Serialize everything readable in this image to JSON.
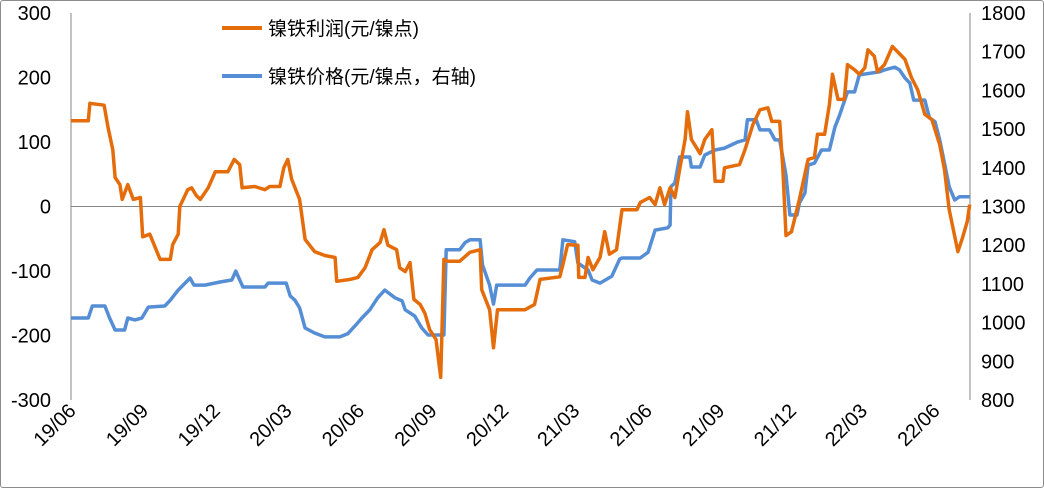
{
  "chart_data": {
    "type": "line",
    "title": "",
    "xlabel": "",
    "ylabel": "",
    "y2label": "",
    "xlim": [
      "2019-06-01",
      "2022-07-15"
    ],
    "x_ticks": [
      "19/06",
      "19/09",
      "19/12",
      "20/03",
      "20/06",
      "20/09",
      "20/12",
      "21/03",
      "21/06",
      "21/09",
      "21/12",
      "22/03",
      "22/06"
    ],
    "x_tick_dates": [
      "2019-06-01",
      "2019-09-01",
      "2019-12-01",
      "2020-03-01",
      "2020-06-01",
      "2020-09-01",
      "2020-12-01",
      "2021-03-01",
      "2021-06-01",
      "2021-09-01",
      "2021-12-01",
      "2022-03-01",
      "2022-06-01"
    ],
    "ylim": [
      -300,
      300
    ],
    "y_ticks": [
      "-300",
      "-200",
      "-100",
      "0",
      "100",
      "200",
      "300"
    ],
    "y2lim": [
      800,
      1800
    ],
    "y2_ticks": [
      "800",
      "900",
      "1000",
      "1100",
      "1200",
      "1300",
      "1400",
      "1500",
      "1600",
      "1700",
      "1800"
    ],
    "grid": false,
    "legend_position": "top-center",
    "series": [
      {
        "name": "镍铁利润(元/镍点)",
        "axis": "left",
        "color": "#E46C0A",
        "points": [
          [
            "2019-06-01",
            133
          ],
          [
            "2019-06-23",
            133
          ],
          [
            "2019-06-25",
            160
          ],
          [
            "2019-07-13",
            157
          ],
          [
            "2019-07-18",
            122
          ],
          [
            "2019-07-24",
            88
          ],
          [
            "2019-07-27",
            45
          ],
          [
            "2019-08-02",
            34
          ],
          [
            "2019-08-05",
            11
          ],
          [
            "2019-08-12",
            34
          ],
          [
            "2019-08-19",
            11
          ],
          [
            "2019-08-28",
            14
          ],
          [
            "2019-08-31",
            -47
          ],
          [
            "2019-09-09",
            -43
          ],
          [
            "2019-09-22",
            -82
          ],
          [
            "2019-10-05",
            -82
          ],
          [
            "2019-10-08",
            -59
          ],
          [
            "2019-10-15",
            -43
          ],
          [
            "2019-10-17",
            0
          ],
          [
            "2019-10-27",
            26
          ],
          [
            "2019-11-01",
            29
          ],
          [
            "2019-11-07",
            17
          ],
          [
            "2019-11-12",
            11
          ],
          [
            "2019-11-22",
            29
          ],
          [
            "2019-12-01",
            54
          ],
          [
            "2019-12-17",
            54
          ],
          [
            "2019-12-25",
            73
          ],
          [
            "2020-01-01",
            65
          ],
          [
            "2020-01-04",
            29
          ],
          [
            "2020-01-20",
            31
          ],
          [
            "2020-02-02",
            26
          ],
          [
            "2020-02-08",
            31
          ],
          [
            "2020-02-21",
            31
          ],
          [
            "2020-02-26",
            60
          ],
          [
            "2020-03-02",
            73
          ],
          [
            "2020-03-07",
            42
          ],
          [
            "2020-03-17",
            11
          ],
          [
            "2020-03-24",
            -51
          ],
          [
            "2020-04-05",
            -70
          ],
          [
            "2020-04-18",
            -76
          ],
          [
            "2020-05-01",
            -79
          ],
          [
            "2020-05-03",
            -116
          ],
          [
            "2020-05-20",
            -113
          ],
          [
            "2020-05-30",
            -110
          ],
          [
            "2020-06-08",
            -95
          ],
          [
            "2020-06-17",
            -67
          ],
          [
            "2020-06-27",
            -56
          ],
          [
            "2020-07-02",
            -36
          ],
          [
            "2020-07-07",
            -60
          ],
          [
            "2020-07-18",
            -67
          ],
          [
            "2020-07-22",
            -95
          ],
          [
            "2020-07-29",
            -101
          ],
          [
            "2020-08-04",
            -87
          ],
          [
            "2020-08-09",
            -144
          ],
          [
            "2020-08-17",
            -152
          ],
          [
            "2020-08-23",
            -166
          ],
          [
            "2020-08-29",
            -191
          ],
          [
            "2020-09-06",
            -206
          ],
          [
            "2020-09-12",
            -265
          ],
          [
            "2020-09-16",
            -82
          ],
          [
            "2020-09-21",
            -85
          ],
          [
            "2020-10-06",
            -85
          ],
          [
            "2020-10-19",
            -71
          ],
          [
            "2020-11-01",
            -67
          ],
          [
            "2020-11-03",
            -129
          ],
          [
            "2020-11-13",
            -160
          ],
          [
            "2020-11-18",
            -219
          ],
          [
            "2020-11-23",
            -160
          ],
          [
            "2020-12-28",
            -160
          ],
          [
            "2021-01-09",
            -152
          ],
          [
            "2021-01-16",
            -113
          ],
          [
            "2021-02-10",
            -109
          ],
          [
            "2021-02-14",
            -90
          ],
          [
            "2021-02-20",
            -59
          ],
          [
            "2021-03-05",
            -60
          ],
          [
            "2021-03-06",
            -110
          ],
          [
            "2021-03-14",
            -110
          ],
          [
            "2021-03-18",
            -79
          ],
          [
            "2021-03-24",
            -98
          ],
          [
            "2021-04-02",
            -79
          ],
          [
            "2021-04-08",
            -39
          ],
          [
            "2021-04-14",
            -74
          ],
          [
            "2021-04-23",
            -67
          ],
          [
            "2021-04-30",
            -5
          ],
          [
            "2021-05-19",
            -5
          ],
          [
            "2021-05-23",
            6
          ],
          [
            "2021-06-04",
            14
          ],
          [
            "2021-06-11",
            3
          ],
          [
            "2021-06-17",
            29
          ],
          [
            "2021-06-23",
            3
          ],
          [
            "2021-06-30",
            29
          ],
          [
            "2021-07-06",
            14
          ],
          [
            "2021-07-12",
            57
          ],
          [
            "2021-07-19",
            104
          ],
          [
            "2021-07-22",
            147
          ],
          [
            "2021-07-27",
            104
          ],
          [
            "2021-08-07",
            82
          ],
          [
            "2021-08-13",
            104
          ],
          [
            "2021-08-22",
            119
          ],
          [
            "2021-08-26",
            39
          ],
          [
            "2021-09-05",
            39
          ],
          [
            "2021-09-07",
            60
          ],
          [
            "2021-09-26",
            65
          ],
          [
            "2021-10-03",
            88
          ],
          [
            "2021-10-13",
            127
          ],
          [
            "2021-10-22",
            150
          ],
          [
            "2021-11-01",
            153
          ],
          [
            "2021-11-06",
            132
          ],
          [
            "2021-11-16",
            132
          ],
          [
            "2021-11-20",
            57
          ],
          [
            "2021-11-24",
            -45
          ],
          [
            "2021-12-01",
            -39
          ],
          [
            "2021-12-11",
            11
          ],
          [
            "2021-12-22",
            73
          ],
          [
            "2021-12-30",
            76
          ],
          [
            "2022-01-03",
            112
          ],
          [
            "2022-01-12",
            112
          ],
          [
            "2022-01-18",
            158
          ],
          [
            "2022-01-22",
            205
          ],
          [
            "2022-01-29",
            166
          ],
          [
            "2022-02-06",
            166
          ],
          [
            "2022-02-10",
            220
          ],
          [
            "2022-02-19",
            212
          ],
          [
            "2022-02-25",
            205
          ],
          [
            "2022-03-04",
            215
          ],
          [
            "2022-03-08",
            243
          ],
          [
            "2022-03-16",
            233
          ],
          [
            "2022-03-20",
            209
          ],
          [
            "2022-03-29",
            220
          ],
          [
            "2022-04-08",
            248
          ],
          [
            "2022-04-24",
            228
          ],
          [
            "2022-05-02",
            200
          ],
          [
            "2022-05-10",
            181
          ],
          [
            "2022-05-19",
            143
          ],
          [
            "2022-05-28",
            135
          ],
          [
            "2022-06-07",
            96
          ],
          [
            "2022-06-13",
            57
          ],
          [
            "2022-06-19",
            -5
          ],
          [
            "2022-06-30",
            -70
          ],
          [
            "2022-07-06",
            -48
          ],
          [
            "2022-07-12",
            -23
          ],
          [
            "2022-07-15",
            3
          ]
        ]
      },
      {
        "name": "镍铁价格(元/镍点，右轴)",
        "axis": "right",
        "color": "#558ED5",
        "points": [
          [
            "2019-06-01",
            1012
          ],
          [
            "2019-06-23",
            1012
          ],
          [
            "2019-06-28",
            1043
          ],
          [
            "2019-07-14",
            1043
          ],
          [
            "2019-07-20",
            1012
          ],
          [
            "2019-07-27",
            981
          ],
          [
            "2019-08-08",
            981
          ],
          [
            "2019-08-12",
            1012
          ],
          [
            "2019-08-21",
            1007
          ],
          [
            "2019-08-30",
            1012
          ],
          [
            "2019-09-07",
            1040
          ],
          [
            "2019-09-28",
            1043
          ],
          [
            "2019-10-05",
            1058
          ],
          [
            "2019-10-15",
            1084
          ],
          [
            "2019-10-30",
            1115
          ],
          [
            "2019-11-04",
            1097
          ],
          [
            "2019-11-18",
            1097
          ],
          [
            "2019-12-07",
            1105
          ],
          [
            "2019-12-22",
            1110
          ],
          [
            "2019-12-27",
            1133
          ],
          [
            "2020-01-05",
            1092
          ],
          [
            "2020-02-02",
            1092
          ],
          [
            "2020-02-06",
            1102
          ],
          [
            "2020-02-29",
            1102
          ],
          [
            "2020-03-05",
            1069
          ],
          [
            "2020-03-11",
            1058
          ],
          [
            "2020-03-17",
            1038
          ],
          [
            "2020-03-24",
            986
          ],
          [
            "2020-04-05",
            973
          ],
          [
            "2020-04-18",
            963
          ],
          [
            "2020-05-07",
            963
          ],
          [
            "2020-05-17",
            971
          ],
          [
            "2020-05-26",
            991
          ],
          [
            "2020-06-04",
            1012
          ],
          [
            "2020-06-14",
            1033
          ],
          [
            "2020-06-24",
            1064
          ],
          [
            "2020-07-03",
            1084
          ],
          [
            "2020-07-16",
            1064
          ],
          [
            "2020-07-25",
            1056
          ],
          [
            "2020-07-29",
            1033
          ],
          [
            "2020-08-10",
            1017
          ],
          [
            "2020-08-19",
            986
          ],
          [
            "2020-08-27",
            968
          ],
          [
            "2020-09-16",
            968
          ],
          [
            "2020-09-19",
            1188
          ],
          [
            "2020-10-06",
            1188
          ],
          [
            "2020-10-13",
            1207
          ],
          [
            "2020-10-19",
            1214
          ],
          [
            "2020-11-01",
            1214
          ],
          [
            "2020-11-04",
            1149
          ],
          [
            "2020-11-13",
            1097
          ],
          [
            "2020-11-18",
            1048
          ],
          [
            "2020-11-22",
            1097
          ],
          [
            "2020-12-28",
            1097
          ],
          [
            "2021-01-03",
            1115
          ],
          [
            "2021-01-12",
            1136
          ],
          [
            "2021-02-10",
            1136
          ],
          [
            "2021-02-14",
            1214
          ],
          [
            "2021-03-01",
            1209
          ],
          [
            "2021-03-05",
            1154
          ],
          [
            "2021-03-18",
            1136
          ],
          [
            "2021-03-23",
            1110
          ],
          [
            "2021-04-02",
            1102
          ],
          [
            "2021-04-17",
            1120
          ],
          [
            "2021-04-27",
            1164
          ],
          [
            "2021-04-30",
            1167
          ],
          [
            "2021-05-23",
            1167
          ],
          [
            "2021-06-02",
            1182
          ],
          [
            "2021-06-11",
            1239
          ],
          [
            "2021-06-27",
            1245
          ],
          [
            "2021-06-30",
            1252
          ],
          [
            "2021-07-01",
            1351
          ],
          [
            "2021-07-06",
            1361
          ],
          [
            "2021-07-12",
            1428
          ],
          [
            "2021-07-25",
            1428
          ],
          [
            "2021-07-27",
            1402
          ],
          [
            "2021-08-07",
            1402
          ],
          [
            "2021-08-13",
            1433
          ],
          [
            "2021-08-26",
            1446
          ],
          [
            "2021-09-07",
            1451
          ],
          [
            "2021-09-24",
            1467
          ],
          [
            "2021-10-03",
            1472
          ],
          [
            "2021-10-06",
            1524
          ],
          [
            "2021-10-17",
            1524
          ],
          [
            "2021-10-22",
            1498
          ],
          [
            "2021-11-03",
            1498
          ],
          [
            "2021-11-10",
            1472
          ],
          [
            "2021-11-16",
            1472
          ],
          [
            "2021-11-24",
            1381
          ],
          [
            "2021-11-29",
            1278
          ],
          [
            "2021-12-08",
            1278
          ],
          [
            "2021-12-11",
            1309
          ],
          [
            "2021-12-18",
            1335
          ],
          [
            "2021-12-22",
            1407
          ],
          [
            "2021-12-30",
            1412
          ],
          [
            "2022-01-08",
            1446
          ],
          [
            "2022-01-18",
            1446
          ],
          [
            "2022-01-25",
            1505
          ],
          [
            "2022-01-31",
            1536
          ],
          [
            "2022-02-10",
            1596
          ],
          [
            "2022-02-19",
            1596
          ],
          [
            "2022-02-25",
            1640
          ],
          [
            "2022-03-23",
            1648
          ],
          [
            "2022-03-29",
            1653
          ],
          [
            "2022-04-11",
            1660
          ],
          [
            "2022-04-17",
            1653
          ],
          [
            "2022-04-24",
            1632
          ],
          [
            "2022-04-30",
            1619
          ],
          [
            "2022-05-05",
            1575
          ],
          [
            "2022-05-19",
            1575
          ],
          [
            "2022-05-25",
            1529
          ],
          [
            "2022-06-01",
            1519
          ],
          [
            "2022-06-07",
            1472
          ],
          [
            "2022-06-13",
            1412
          ],
          [
            "2022-06-19",
            1351
          ],
          [
            "2022-06-26",
            1317
          ],
          [
            "2022-07-02",
            1325
          ],
          [
            "2022-07-15",
            1325
          ]
        ]
      }
    ]
  }
}
